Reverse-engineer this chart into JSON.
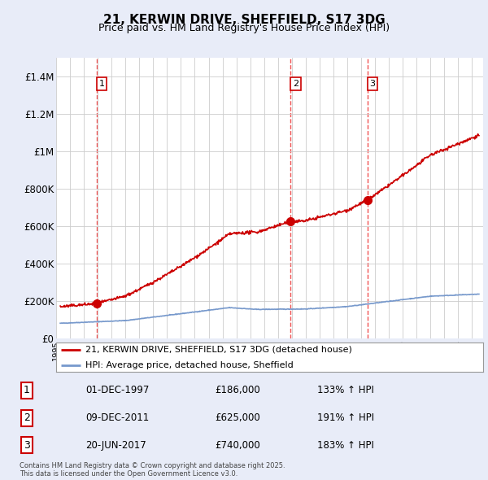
{
  "title": "21, KERWIN DRIVE, SHEFFIELD, S17 3DG",
  "subtitle": "Price paid vs. HM Land Registry's House Price Index (HPI)",
  "ylim": [
    0,
    1500000
  ],
  "yticks": [
    0,
    200000,
    400000,
    600000,
    800000,
    1000000,
    1200000,
    1400000
  ],
  "ytick_labels": [
    "£0",
    "£200K",
    "£400K",
    "£600K",
    "£800K",
    "£1M",
    "£1.2M",
    "£1.4M"
  ],
  "sale_dates_num": [
    1997.92,
    2011.92,
    2017.47
  ],
  "sale_prices": [
    186000,
    625000,
    740000
  ],
  "sale_labels": [
    "1",
    "2",
    "3"
  ],
  "dashed_line_color": "#ee3333",
  "sale_dot_color": "#cc0000",
  "hpi_line_color": "#7799cc",
  "price_line_color": "#cc0000",
  "legend_entries": [
    "21, KERWIN DRIVE, SHEFFIELD, S17 3DG (detached house)",
    "HPI: Average price, detached house, Sheffield"
  ],
  "table_rows": [
    [
      "1",
      "01-DEC-1997",
      "£186,000",
      "133% ↑ HPI"
    ],
    [
      "2",
      "09-DEC-2011",
      "£625,000",
      "191% ↑ HPI"
    ],
    [
      "3",
      "20-JUN-2017",
      "£740,000",
      "183% ↑ HPI"
    ]
  ],
  "footnote": "Contains HM Land Registry data © Crown copyright and database right 2025.\nThis data is licensed under the Open Government Licence v3.0.",
  "bg_color": "#e8ecf8",
  "plot_bg_color": "#ffffff"
}
